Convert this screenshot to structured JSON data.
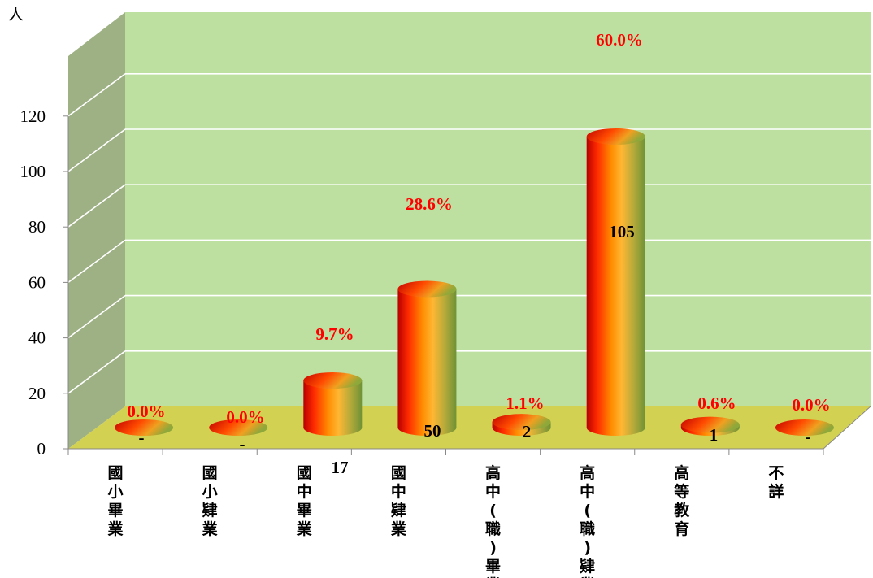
{
  "chart_data": {
    "type": "bar",
    "style": "3d-cylinder",
    "y_unit": "人",
    "ylim": [
      0,
      120
    ],
    "yticks": [
      "0",
      "20",
      "40",
      "60",
      "80",
      "100",
      "120"
    ],
    "grid": true,
    "categories": [
      "國小畢業",
      "國小肄業",
      "國中畢業",
      "國中肄業",
      "高中(職)畢業",
      "高中(職)肄業",
      "高等教育",
      "不詳"
    ],
    "values": [
      0,
      0,
      17,
      50,
      2,
      105,
      1,
      0
    ],
    "value_labels": [
      "-",
      "-",
      "17",
      "50",
      "2",
      "105",
      "1",
      "-"
    ],
    "percent_labels": [
      "0.0%",
      "0.0%",
      "9.7%",
      "28.6%",
      "1.1%",
      "60.0%",
      "0.6%",
      "0.0%"
    ],
    "colors": {
      "back_wall": "#bde0a0",
      "side_wall": "#9db184",
      "floor": "#d3d152",
      "percent_label": "#ff0000",
      "bar_gradient": [
        "#cc0000",
        "#ff3300",
        "#ff8800",
        "#ffb733",
        "#c9b03a",
        "#7a9a3a"
      ]
    }
  }
}
